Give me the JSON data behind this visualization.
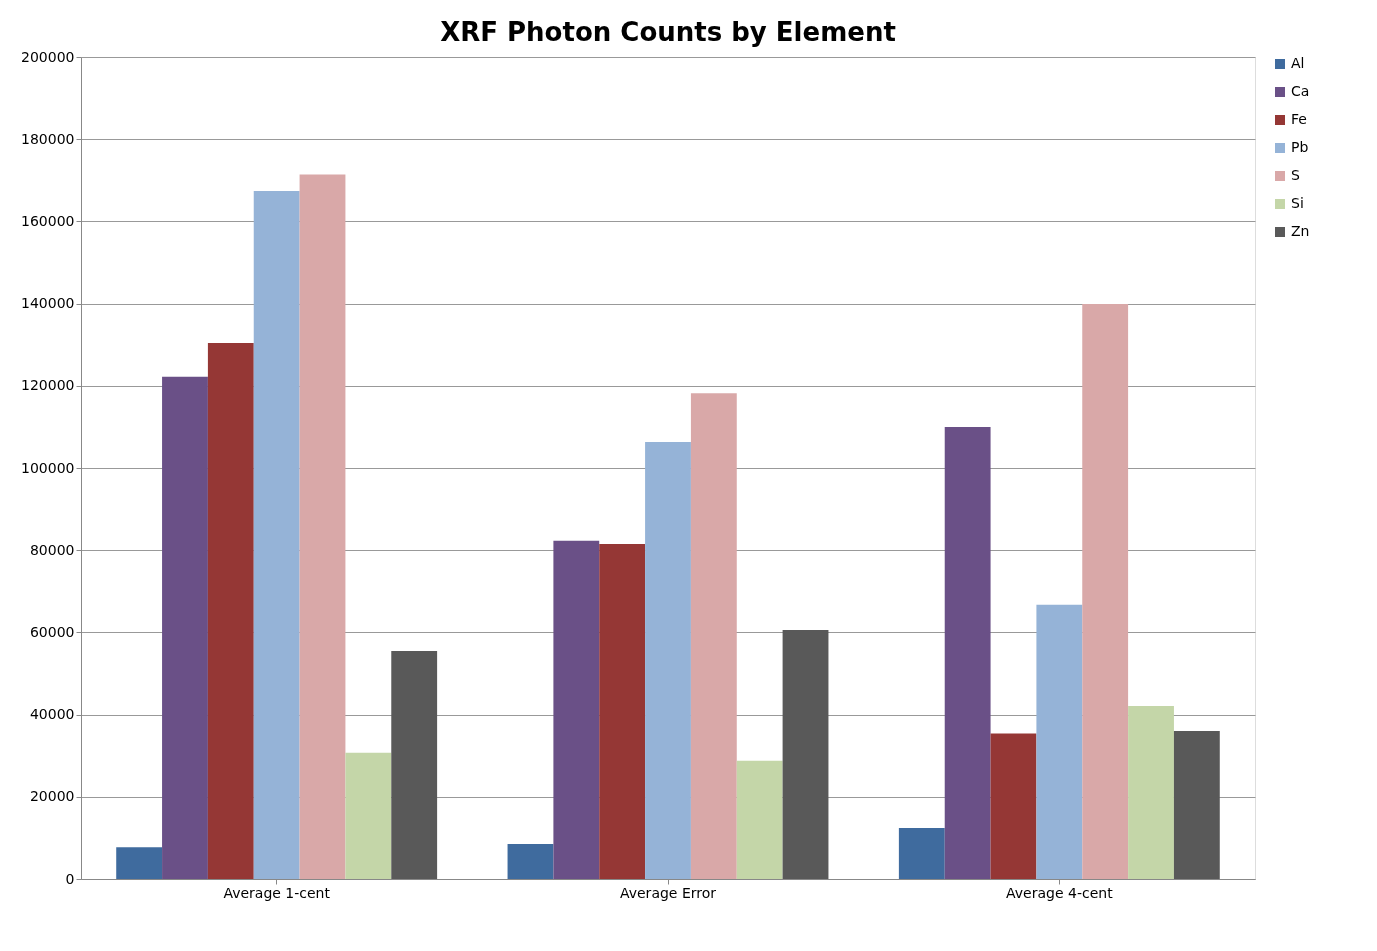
{
  "chart_data": {
    "type": "bar",
    "title": "XRF Photon Counts by Element",
    "categories": [
      "Average 1-cent",
      "Average Error",
      "Average 4-cent"
    ],
    "series": [
      {
        "name": "Al",
        "color": "#3f6b9e",
        "values": [
          7700,
          8500,
          12400
        ]
      },
      {
        "name": "Ca",
        "color": "#6a5087",
        "values": [
          122200,
          82300,
          110000
        ]
      },
      {
        "name": "Fe",
        "color": "#953735",
        "values": [
          130400,
          81500,
          35400
        ]
      },
      {
        "name": "Pb",
        "color": "#95b3d7",
        "values": [
          167400,
          106300,
          66700
        ]
      },
      {
        "name": "S",
        "color": "#d9a8a8",
        "values": [
          171400,
          118200,
          139900
        ]
      },
      {
        "name": "Si",
        "color": "#c4d6a8",
        "values": [
          30700,
          28800,
          42100
        ]
      },
      {
        "name": "Zn",
        "color": "#595959",
        "values": [
          55500,
          60600,
          36000
        ]
      }
    ],
    "ylim": [
      0,
      200000
    ],
    "yticks": [
      0,
      20000,
      40000,
      60000,
      80000,
      100000,
      120000,
      140000,
      160000,
      180000,
      200000
    ],
    "grid": "y",
    "legend": "right"
  }
}
